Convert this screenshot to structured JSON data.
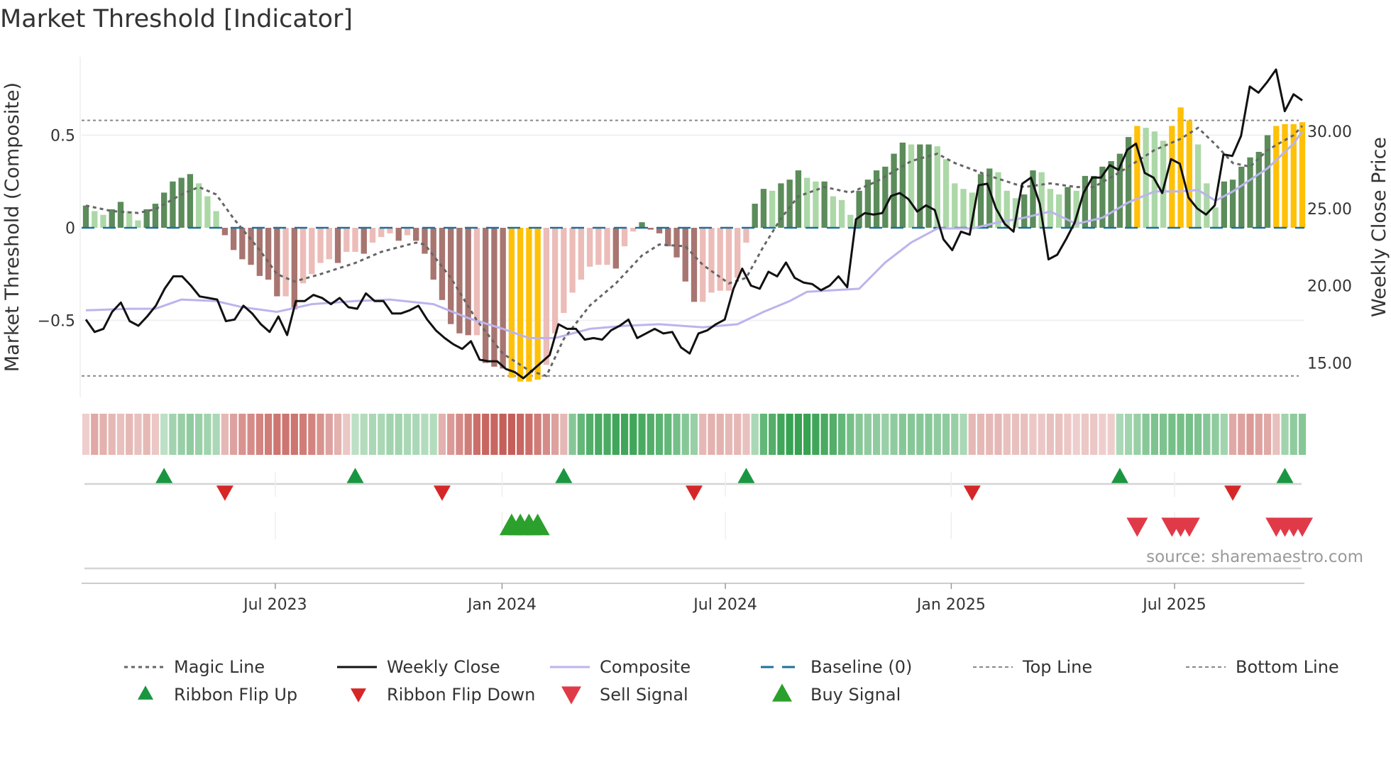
{
  "title": "Market Threshold [Indicator]",
  "source": "source: sharemaestro.com",
  "chart_data": {
    "type": "bar",
    "title": "Market Threshold [Indicator]",
    "ylabel_left": "Market Threshold (Composite)",
    "ylabel_right": "Weekly Close Price",
    "ylim_left": [
      -0.92,
      0.92
    ],
    "ylim_right": [
      12.5,
      35.0
    ],
    "left_ticks": [
      {
        "v": 0.5,
        "label": "0.5"
      },
      {
        "v": 0,
        "label": "0"
      },
      {
        "v": -0.5,
        "label": "−0.5"
      }
    ],
    "right_ticks": [
      {
        "v": 30,
        "label": "30.00"
      },
      {
        "v": 25,
        "label": "25.00"
      },
      {
        "v": 20,
        "label": "20.00"
      },
      {
        "v": 15,
        "label": "15.00"
      }
    ],
    "x_ticks": [
      {
        "week": 21.8,
        "label": "Jul 2023"
      },
      {
        "week": 47.9,
        "label": "Jan 2024"
      },
      {
        "week": 73.6,
        "label": "Jul 2024"
      },
      {
        "week": 99.6,
        "label": "Jan 2025"
      },
      {
        "week": 125.3,
        "label": "Jul 2025"
      }
    ],
    "top_line": 0.58,
    "bottom_line": -0.8,
    "baseline": 0,
    "composite_histogram": [
      0.12,
      0.09,
      0.07,
      0.1,
      0.14,
      0.09,
      0.04,
      0.1,
      0.13,
      0.19,
      0.25,
      0.27,
      0.29,
      0.24,
      0.17,
      0.09,
      -0.04,
      -0.12,
      -0.17,
      -0.2,
      -0.26,
      -0.28,
      -0.37,
      -0.37,
      -0.44,
      -0.3,
      -0.25,
      -0.19,
      -0.17,
      -0.19,
      -0.13,
      -0.13,
      -0.14,
      -0.08,
      -0.05,
      -0.03,
      -0.07,
      -0.04,
      -0.07,
      -0.14,
      -0.28,
      -0.39,
      -0.52,
      -0.57,
      -0.58,
      -0.58,
      -0.73,
      -0.75,
      -0.76,
      -0.81,
      -0.83,
      -0.83,
      -0.82,
      -0.74,
      -0.57,
      -0.46,
      -0.35,
      -0.28,
      -0.21,
      -0.2,
      -0.2,
      -0.22,
      -0.1,
      -0.02,
      0.03,
      -0.01,
      -0.03,
      -0.1,
      -0.16,
      -0.29,
      -0.4,
      -0.4,
      -0.35,
      -0.34,
      -0.34,
      -0.27,
      -0.08,
      0.13,
      0.21,
      0.2,
      0.24,
      0.26,
      0.31,
      0.27,
      0.25,
      0.25,
      0.17,
      0.15,
      0.07,
      0.2,
      0.26,
      0.31,
      0.33,
      0.4,
      0.46,
      0.45,
      0.45,
      0.45,
      0.44,
      0.37,
      0.24,
      0.21,
      0.19,
      0.29,
      0.32,
      0.3,
      0.2,
      0.16,
      0.18,
      0.31,
      0.3,
      0.21,
      0.18,
      0.22,
      0.2,
      0.28,
      0.28,
      0.33,
      0.36,
      0.4,
      0.49,
      0.55,
      0.54,
      0.52,
      0.47,
      0.55,
      0.65,
      0.58,
      0.45,
      0.24,
      0.11,
      0.25,
      0.26,
      0.33,
      0.38,
      0.41,
      0.5,
      0.55,
      0.56,
      0.56,
      0.57
    ],
    "extreme_weeks": [
      49,
      50,
      51,
      52,
      121,
      125,
      126,
      127,
      137,
      138,
      139,
      140
    ],
    "weekly_close": [
      17.8,
      17.0,
      17.2,
      18.3,
      18.9,
      17.7,
      17.4,
      18.0,
      18.7,
      19.8,
      20.6,
      20.6,
      20.0,
      19.3,
      19.2,
      19.1,
      17.7,
      17.8,
      18.7,
      18.2,
      17.5,
      17.0,
      18.0,
      16.8,
      19.0,
      19.0,
      19.4,
      19.2,
      18.8,
      19.2,
      18.6,
      18.5,
      19.5,
      19.0,
      19.0,
      18.2,
      18.2,
      18.4,
      18.7,
      17.8,
      17.1,
      16.6,
      16.2,
      15.9,
      16.4,
      15.2,
      15.1,
      15.1,
      14.6,
      14.4,
      14.0,
      14.5,
      15.0,
      15.5,
      17.5,
      17.2,
      17.2,
      16.5,
      16.6,
      16.5,
      17.1,
      17.4,
      17.8,
      16.6,
      16.9,
      17.2,
      16.9,
      17.0,
      16.0,
      15.6,
      16.9,
      17.1,
      17.5,
      17.8,
      19.8,
      21.1,
      20.0,
      19.8,
      20.9,
      20.6,
      21.5,
      20.5,
      20.2,
      20.1,
      19.7,
      20.0,
      20.6,
      19.9,
      24.3,
      24.7,
      24.6,
      24.7,
      25.8,
      26.0,
      25.6,
      24.8,
      25.2,
      24.9,
      23.0,
      22.3,
      23.5,
      23.3,
      26.5,
      26.6,
      25.0,
      24.0,
      23.5,
      26.6,
      27.0,
      25.3,
      21.7,
      22.0,
      23.0,
      24.1,
      26.0,
      27.0,
      27.0,
      27.8,
      27.5,
      28.8,
      29.2,
      27.3,
      27.0,
      26.0,
      28.2,
      27.9,
      25.7,
      25.0,
      24.6,
      25.2,
      28.5,
      28.4,
      29.7,
      32.9,
      32.5,
      33.2,
      34.0,
      31.3,
      32.4,
      32.0
    ],
    "composite_line": [
      [
        0,
        18.4
      ],
      [
        5,
        18.5
      ],
      [
        8,
        18.5
      ],
      [
        11,
        19.1
      ],
      [
        15,
        19.0
      ],
      [
        18,
        18.6
      ],
      [
        22,
        18.3
      ],
      [
        26,
        18.8
      ],
      [
        31,
        19.0
      ],
      [
        35,
        19.1
      ],
      [
        40,
        18.8
      ],
      [
        44,
        17.9
      ],
      [
        48,
        17.2
      ],
      [
        51,
        16.6
      ],
      [
        54,
        16.6
      ],
      [
        58,
        17.2
      ],
      [
        62,
        17.4
      ],
      [
        66,
        17.5
      ],
      [
        71,
        17.3
      ],
      [
        75,
        17.5
      ],
      [
        78,
        18.3
      ],
      [
        81,
        19.0
      ],
      [
        83,
        19.6
      ],
      [
        86,
        19.7
      ],
      [
        89,
        19.8
      ],
      [
        92,
        21.5
      ],
      [
        95,
        22.8
      ],
      [
        98,
        23.7
      ],
      [
        102,
        23.7
      ],
      [
        105,
        24.1
      ],
      [
        108,
        24.4
      ],
      [
        111,
        24.8
      ],
      [
        114,
        24.0
      ],
      [
        117,
        24.4
      ],
      [
        120,
        25.4
      ],
      [
        123,
        26.1
      ],
      [
        126,
        26.1
      ],
      [
        128,
        26.2
      ],
      [
        130,
        25.5
      ],
      [
        132,
        26.1
      ],
      [
        136,
        27.6
      ],
      [
        139,
        29.2
      ],
      [
        140,
        30.0
      ]
    ],
    "magic_line": [
      [
        0,
        0.12
      ],
      [
        3,
        0.09
      ],
      [
        6,
        0.08
      ],
      [
        8,
        0.1
      ],
      [
        11,
        0.18
      ],
      [
        13,
        0.22
      ],
      [
        15,
        0.18
      ],
      [
        17,
        0.05
      ],
      [
        20,
        -0.12
      ],
      [
        22,
        -0.25
      ],
      [
        24,
        -0.29
      ],
      [
        27,
        -0.25
      ],
      [
        31,
        -0.19
      ],
      [
        34,
        -0.13
      ],
      [
        38,
        -0.08
      ],
      [
        39,
        -0.09
      ],
      [
        42,
        -0.27
      ],
      [
        45,
        -0.5
      ],
      [
        48,
        -0.68
      ],
      [
        51,
        -0.77
      ],
      [
        53,
        -0.8
      ],
      [
        55,
        -0.6
      ],
      [
        58,
        -0.42
      ],
      [
        61,
        -0.3
      ],
      [
        64,
        -0.15
      ],
      [
        66,
        -0.09
      ],
      [
        69,
        -0.1
      ],
      [
        71,
        -0.2
      ],
      [
        74,
        -0.3
      ],
      [
        76,
        -0.27
      ],
      [
        78,
        -0.1
      ],
      [
        80,
        0.05
      ],
      [
        82,
        0.17
      ],
      [
        85,
        0.22
      ],
      [
        88,
        0.19
      ],
      [
        91,
        0.25
      ],
      [
        95,
        0.36
      ],
      [
        98,
        0.4
      ],
      [
        100,
        0.35
      ],
      [
        104,
        0.28
      ],
      [
        108,
        0.22
      ],
      [
        111,
        0.24
      ],
      [
        114,
        0.22
      ],
      [
        116,
        0.22
      ],
      [
        119,
        0.3
      ],
      [
        123,
        0.42
      ],
      [
        126,
        0.48
      ],
      [
        128,
        0.54
      ],
      [
        130,
        0.45
      ],
      [
        132,
        0.35
      ],
      [
        134,
        0.33
      ],
      [
        136,
        0.42
      ],
      [
        139,
        0.5
      ],
      [
        140,
        0.55
      ]
    ],
    "ribbon": [
      -0.15,
      -0.4,
      -0.35,
      -0.3,
      -0.25,
      -0.3,
      -0.25,
      -0.3,
      -0.2,
      0.2,
      0.35,
      0.4,
      0.45,
      0.4,
      0.35,
      0.3,
      -0.3,
      -0.45,
      -0.55,
      -0.6,
      -0.65,
      -0.7,
      -0.75,
      -0.75,
      -0.75,
      -0.7,
      -0.65,
      -0.55,
      -0.45,
      -0.35,
      -0.2,
      0.2,
      0.25,
      0.3,
      0.3,
      0.35,
      0.35,
      0.3,
      0.3,
      0.25,
      0.25,
      -0.35,
      -0.5,
      -0.6,
      -0.7,
      -0.8,
      -0.85,
      -0.85,
      -0.9,
      -0.9,
      -0.85,
      -0.8,
      -0.7,
      -0.6,
      -0.45,
      -0.3,
      0.5,
      0.7,
      0.8,
      0.85,
      0.85,
      0.9,
      0.9,
      0.9,
      0.85,
      0.8,
      0.75,
      0.7,
      0.6,
      0.5,
      0.4,
      -0.3,
      -0.35,
      -0.35,
      -0.3,
      -0.3,
      -0.25,
      0.3,
      0.7,
      0.8,
      0.9,
      0.95,
      0.95,
      0.95,
      0.9,
      0.85,
      0.8,
      0.7,
      0.6,
      0.5,
      0.45,
      0.45,
      0.4,
      0.45,
      0.5,
      0.5,
      0.5,
      0.5,
      0.45,
      0.45,
      0.4,
      0.3,
      -0.3,
      -0.3,
      -0.3,
      -0.3,
      -0.25,
      -0.25,
      -0.25,
      -0.2,
      -0.2,
      -0.25,
      -0.25,
      -0.2,
      -0.15,
      -0.2,
      -0.2,
      -0.15,
      -0.15,
      0.3,
      0.35,
      0.4,
      0.5,
      0.55,
      0.55,
      0.6,
      0.6,
      0.6,
      0.55,
      0.5,
      0.45,
      0.35,
      -0.4,
      -0.45,
      -0.5,
      -0.45,
      -0.4,
      -0.25,
      0.35,
      0.45,
      0.5
    ],
    "ribbon_flip_up_weeks": [
      9,
      31,
      55,
      76,
      119,
      138
    ],
    "ribbon_flip_down_weeks": [
      16,
      41,
      70,
      102,
      132
    ],
    "buy_signal_weeks": [
      49,
      50,
      51,
      52
    ],
    "sell_signal_weeks": [
      121,
      125,
      126,
      127,
      137,
      138,
      139,
      140
    ],
    "legend": [
      {
        "key": "magic",
        "label": "Magic Line"
      },
      {
        "key": "close",
        "label": "Weekly Close"
      },
      {
        "key": "composite",
        "label": "Composite"
      },
      {
        "key": "baseline",
        "label": "Baseline (0)"
      },
      {
        "key": "top",
        "label": "Top Line"
      },
      {
        "key": "bottom",
        "label": "Bottom Line"
      },
      {
        "key": "flipup",
        "label": "Ribbon Flip Up"
      },
      {
        "key": "flipdown",
        "label": "Ribbon Flip Down"
      },
      {
        "key": "sell",
        "label": "Sell Signal"
      },
      {
        "key": "buy",
        "label": "Buy Signal"
      }
    ],
    "legend_position": "bottom"
  },
  "colors": {
    "pos_rising": "#5b8c5a",
    "pos_falling": "#acd8a7",
    "neg_falling": "#a87570",
    "neg_rising": "#ecbcb8",
    "extreme": "#ffc107",
    "magic": "#666666",
    "close": "#111111",
    "composite": "#bcb4ec",
    "baseline": "#1f6f99",
    "thresholds": "#888888",
    "ribbon_green": "#2e9e4a",
    "ribbon_red": "#c0504a",
    "flip_up": "#1a9641",
    "flip_down": "#d62728",
    "buy": "#2ca02c",
    "sell": "#e03a48"
  }
}
